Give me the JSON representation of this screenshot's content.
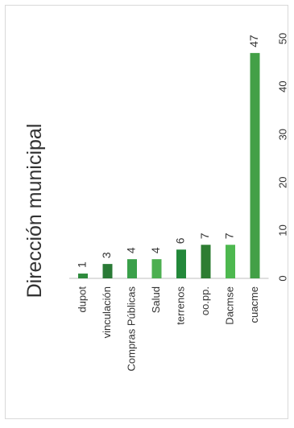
{
  "chart_data": {
    "type": "bar",
    "orientation": "horizontal",
    "rotation": "page rotated 90 degrees clockwise",
    "title": "Dirección municipal",
    "categories": [
      "dupot",
      "vinculación",
      "Compras Públicas",
      "Salud",
      "terrenos",
      "oo.pp.",
      "Dacmse",
      "cuacme"
    ],
    "values": [
      1,
      3,
      4,
      4,
      6,
      7,
      7,
      47
    ],
    "data_labels": [
      "1",
      "3",
      "4",
      "4",
      "6",
      "7",
      "7",
      "47"
    ],
    "xlim": [
      0,
      50
    ],
    "ticks": [
      "0",
      "10",
      "20",
      "30",
      "40",
      "50"
    ],
    "tick_values": [
      0,
      10,
      20,
      30,
      40,
      50
    ],
    "bar_colors": [
      "#2e8b3d",
      "#2a7a36",
      "#3aa04a",
      "#4caf50",
      "#23883a",
      "#2e7d32",
      "#4db84f",
      "#43a047"
    ],
    "grid": false,
    "legend": "none"
  }
}
